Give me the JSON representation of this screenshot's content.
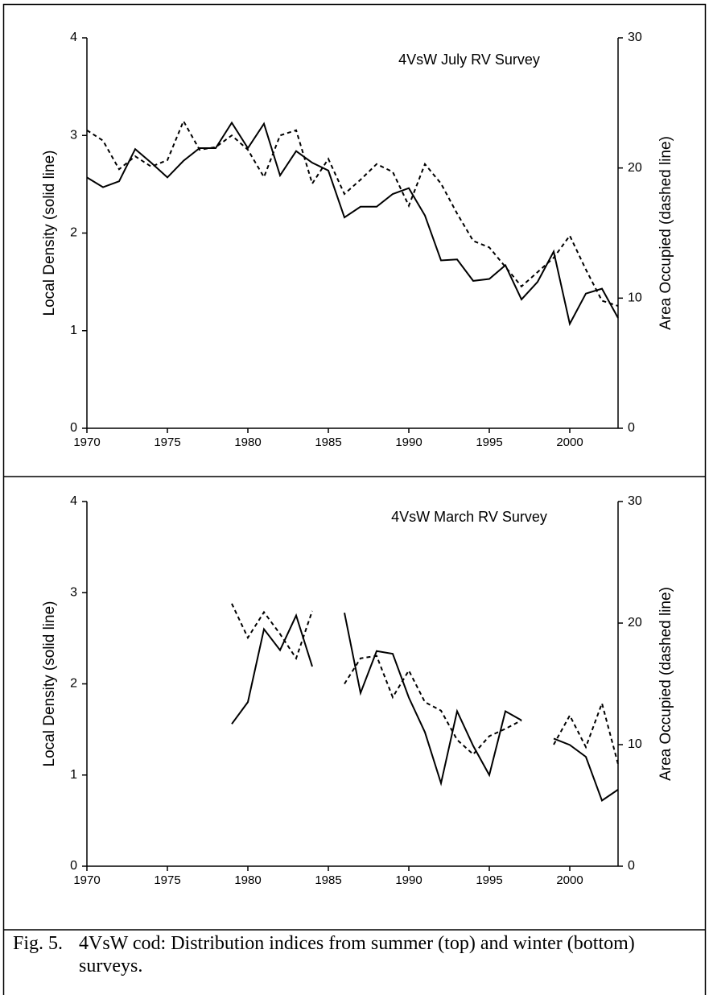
{
  "chart_data": [
    {
      "type": "line",
      "title": "4VsW July RV Survey",
      "ylabel": "Local Density (solid line)",
      "y2label": "Area Occupied (dashed line)",
      "x": [
        1970,
        1971,
        1972,
        1973,
        1974,
        1975,
        1976,
        1977,
        1978,
        1979,
        1980,
        1981,
        1982,
        1983,
        1984,
        1985,
        1986,
        1987,
        1988,
        1989,
        1990,
        1991,
        1992,
        1993,
        1994,
        1995,
        1996,
        1997,
        1998,
        1999,
        2000,
        2001,
        2002,
        2003
      ],
      "xlim": [
        1970,
        2003
      ],
      "xticks": [
        1970,
        1975,
        1980,
        1985,
        1990,
        1995,
        2000
      ],
      "ylim": [
        0,
        4
      ],
      "yticks": [
        0,
        1,
        2,
        3,
        4
      ],
      "y2lim": [
        0,
        30
      ],
      "y2ticks": [
        0,
        10,
        20,
        30
      ],
      "series": [
        {
          "color": "#000000",
          "linestyle": "solid",
          "values": [
            2.57,
            2.47,
            2.53,
            2.86,
            2.72,
            2.57,
            2.74,
            2.87,
            2.87,
            3.13,
            2.87,
            3.12,
            2.59,
            2.84,
            2.72,
            2.64,
            2.16,
            2.27,
            2.27,
            2.4,
            2.46,
            2.18,
            1.72,
            1.73,
            1.51,
            1.53,
            1.67,
            1.32,
            1.5,
            1.81,
            1.07,
            1.38,
            1.43,
            1.13
          ]
        },
        {
          "color": "#000000",
          "linestyle": "dashed",
          "axis": "y2",
          "values": [
            22.9,
            22.1,
            19.9,
            20.9,
            20.1,
            20.6,
            23.6,
            21.4,
            21.6,
            22.5,
            21.4,
            19.3,
            22.5,
            22.9,
            18.8,
            20.7,
            18.0,
            19.1,
            20.3,
            19.7,
            17.1,
            20.3,
            18.8,
            16.5,
            14.4,
            13.9,
            12.4,
            10.9,
            12.0,
            13.1,
            14.8,
            12.2,
            9.8,
            9.4
          ]
        }
      ]
    },
    {
      "type": "line",
      "title": "4VsW March RV Survey",
      "ylabel": "Local Density (solid line)",
      "y2label": "Area Occupied (dashed line)",
      "x": [
        1970,
        1971,
        1972,
        1973,
        1974,
        1975,
        1976,
        1977,
        1978,
        1979,
        1980,
        1981,
        1982,
        1983,
        1984,
        1985,
        1986,
        1987,
        1988,
        1989,
        1990,
        1991,
        1992,
        1993,
        1994,
        1995,
        1996,
        1997,
        1998,
        1999,
        2000,
        2001,
        2002,
        2003
      ],
      "xlim": [
        1970,
        2003
      ],
      "xticks": [
        1970,
        1975,
        1980,
        1985,
        1990,
        1995,
        2000
      ],
      "ylim": [
        0,
        4
      ],
      "yticks": [
        0,
        1,
        2,
        3,
        4
      ],
      "y2lim": [
        0,
        30
      ],
      "y2ticks": [
        0,
        10,
        20,
        30
      ],
      "series": [
        {
          "color": "#000000",
          "linestyle": "solid",
          "values": [
            null,
            null,
            null,
            null,
            null,
            null,
            null,
            null,
            null,
            1.56,
            1.8,
            2.6,
            2.37,
            2.75,
            2.19,
            null,
            2.78,
            1.9,
            2.36,
            2.33,
            1.85,
            1.47,
            0.91,
            1.7,
            1.32,
            1.0,
            1.7,
            1.6,
            null,
            1.4,
            1.33,
            1.2,
            0.72,
            0.84
          ]
        },
        {
          "color": "#000000",
          "linestyle": "dashed",
          "axis": "y2",
          "values": [
            null,
            null,
            null,
            null,
            null,
            null,
            null,
            null,
            null,
            21.6,
            18.8,
            20.9,
            19.1,
            17.1,
            21.0,
            null,
            15.0,
            17.1,
            17.3,
            13.9,
            16.1,
            13.5,
            12.8,
            10.4,
            9.2,
            10.7,
            11.3,
            12.0,
            null,
            10.0,
            12.4,
            9.8,
            13.4,
            8.4
          ]
        }
      ]
    }
  ],
  "caption": {
    "label": "Fig. 5.",
    "text": "4VsW cod: Distribution indices from summer (top) and winter (bottom) surveys."
  }
}
